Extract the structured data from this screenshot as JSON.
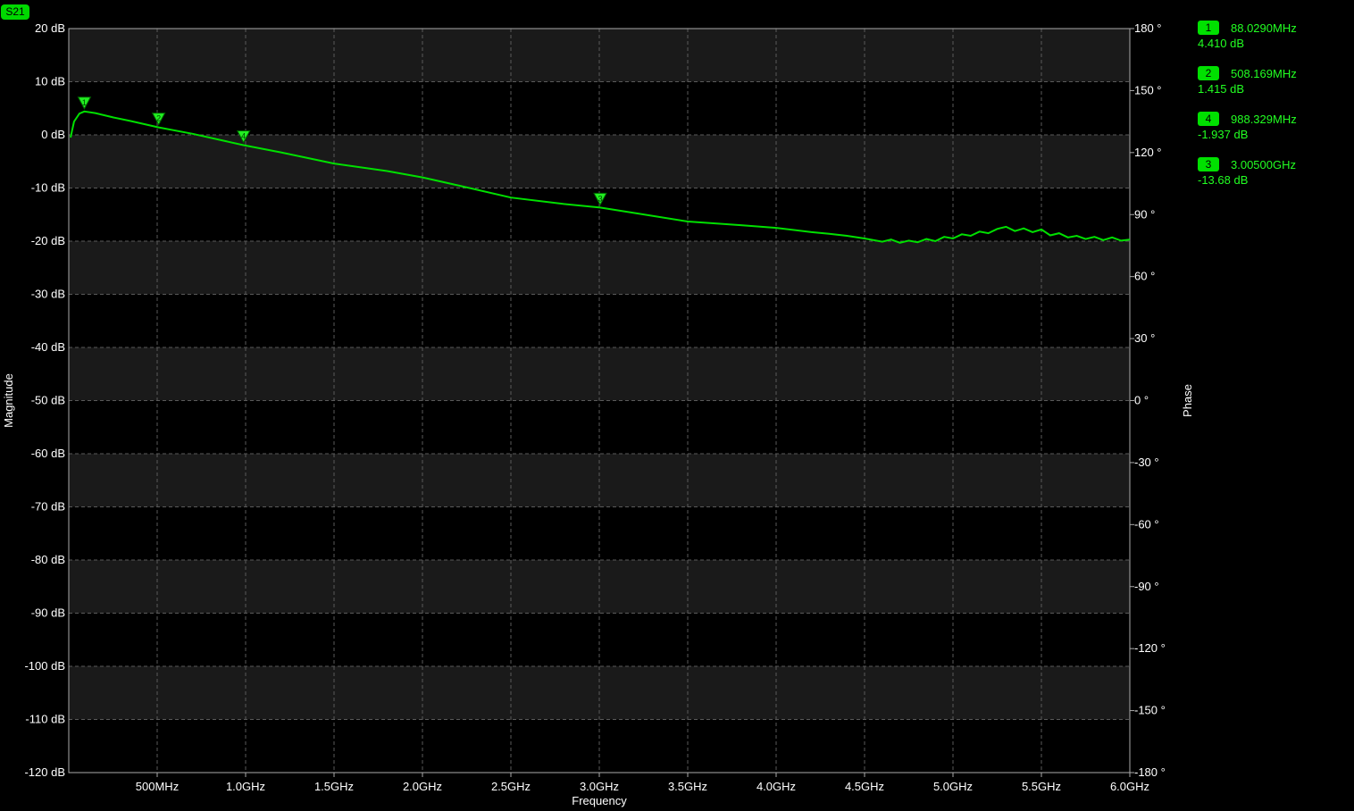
{
  "trace_tag": "S21",
  "colors": {
    "background": "#000000",
    "band": "#1a1a1a",
    "grid": "#5a5a5a",
    "trace": "#00e000",
    "text": "#ffffff",
    "marker": "#22ff22"
  },
  "chart_data": {
    "type": "line",
    "title": "",
    "xlabel": "Frequency",
    "ylabel": "Magnitude",
    "y2label": "Phase",
    "xlim_hz": [
      0,
      6000000000
    ],
    "ylim": [
      -120,
      20
    ],
    "y2lim": [
      -180,
      180
    ],
    "grid": true,
    "x_ticks": [
      {
        "value": 500000000,
        "label": "500MHz"
      },
      {
        "value": 1000000000,
        "label": "1.0GHz"
      },
      {
        "value": 1500000000,
        "label": "1.5GHz"
      },
      {
        "value": 2000000000,
        "label": "2.0GHz"
      },
      {
        "value": 2500000000,
        "label": "2.5GHz"
      },
      {
        "value": 3000000000,
        "label": "3.0GHz"
      },
      {
        "value": 3500000000,
        "label": "3.5GHz"
      },
      {
        "value": 4000000000,
        "label": "4.0GHz"
      },
      {
        "value": 4500000000,
        "label": "4.5GHz"
      },
      {
        "value": 5000000000,
        "label": "5.0GHz"
      },
      {
        "value": 5500000000,
        "label": "5.5GHz"
      },
      {
        "value": 6000000000,
        "label": "6.0GHz"
      }
    ],
    "y_ticks": [
      {
        "value": 20,
        "label": "20 dB"
      },
      {
        "value": 10,
        "label": "10 dB"
      },
      {
        "value": 0,
        "label": "0 dB"
      },
      {
        "value": -10,
        "label": "-10 dB"
      },
      {
        "value": -20,
        "label": "-20 dB"
      },
      {
        "value": -30,
        "label": "-30 dB"
      },
      {
        "value": -40,
        "label": "-40 dB"
      },
      {
        "value": -50,
        "label": "-50 dB"
      },
      {
        "value": -60,
        "label": "-60 dB"
      },
      {
        "value": -70,
        "label": "-70 dB"
      },
      {
        "value": -80,
        "label": "-80 dB"
      },
      {
        "value": -90,
        "label": "-90 dB"
      },
      {
        "value": -100,
        "label": "-100 dB"
      },
      {
        "value": -110,
        "label": "-110 dB"
      },
      {
        "value": -120,
        "label": "-120 dB"
      }
    ],
    "y2_ticks": [
      {
        "value": 180,
        "label": "180 °"
      },
      {
        "value": 150,
        "label": "150 °"
      },
      {
        "value": 120,
        "label": "120 °"
      },
      {
        "value": 90,
        "label": "90 °"
      },
      {
        "value": 60,
        "label": "60 °"
      },
      {
        "value": 30,
        "label": "30 °"
      },
      {
        "value": 0,
        "label": "0 °"
      },
      {
        "value": -30,
        "label": "-30 °"
      },
      {
        "value": -60,
        "label": "-60 °"
      },
      {
        "value": -90,
        "label": "-90 °"
      },
      {
        "value": -120,
        "label": "-120 °"
      },
      {
        "value": -150,
        "label": "-150 °"
      },
      {
        "value": -180,
        "label": "-180 °"
      }
    ],
    "series": [
      {
        "name": "S21",
        "x_hz": [
          10000000,
          30000000,
          60000000,
          88000000,
          150000000,
          250000000,
          350000000,
          508000000,
          700000000,
          988000000,
          1200000000,
          1500000000,
          1800000000,
          2000000000,
          2200000000,
          2500000000,
          2800000000,
          3005000000,
          3200000000,
          3500000000,
          3800000000,
          4000000000,
          4200000000,
          4300000000,
          4400000000,
          4500000000,
          4600000000,
          4650000000,
          4700000000,
          4750000000,
          4800000000,
          4850000000,
          4900000000,
          4950000000,
          5000000000,
          5050000000,
          5100000000,
          5150000000,
          5200000000,
          5250000000,
          5300000000,
          5350000000,
          5400000000,
          5450000000,
          5500000000,
          5550000000,
          5600000000,
          5650000000,
          5700000000,
          5750000000,
          5800000000,
          5850000000,
          5900000000,
          5950000000,
          6000000000
        ],
        "y_db": [
          -0.5,
          2.5,
          4.0,
          4.41,
          4.1,
          3.3,
          2.6,
          1.415,
          0.2,
          -1.937,
          -3.3,
          -5.4,
          -6.8,
          -8.0,
          -9.5,
          -11.8,
          -13.0,
          -13.68,
          -14.7,
          -16.3,
          -17.0,
          -17.5,
          -18.3,
          -18.6,
          -19.0,
          -19.5,
          -20.1,
          -19.7,
          -20.3,
          -19.9,
          -20.2,
          -19.6,
          -20.0,
          -19.2,
          -19.5,
          -18.7,
          -19.0,
          -18.2,
          -18.5,
          -17.7,
          -17.3,
          -18.1,
          -17.6,
          -18.3,
          -17.8,
          -18.9,
          -18.5,
          -19.3,
          -19.0,
          -19.6,
          -19.2,
          -19.8,
          -19.3,
          -19.9,
          -19.7
        ]
      }
    ],
    "markers": [
      {
        "id": "1",
        "freq_hz": 88029000,
        "mag_db": 4.41,
        "freq_label": "88.0290MHz",
        "mag_label": "4.410 dB"
      },
      {
        "id": "2",
        "freq_hz": 508169000,
        "mag_db": 1.415,
        "freq_label": "508.169MHz",
        "mag_label": "1.415 dB"
      },
      {
        "id": "4",
        "freq_hz": 988329000,
        "mag_db": -1.937,
        "freq_label": "988.329MHz",
        "mag_label": "-1.937 dB"
      },
      {
        "id": "3",
        "freq_hz": 3005000000,
        "mag_db": -13.68,
        "freq_label": "3.00500GHz",
        "mag_label": "-13.68 dB"
      }
    ]
  }
}
